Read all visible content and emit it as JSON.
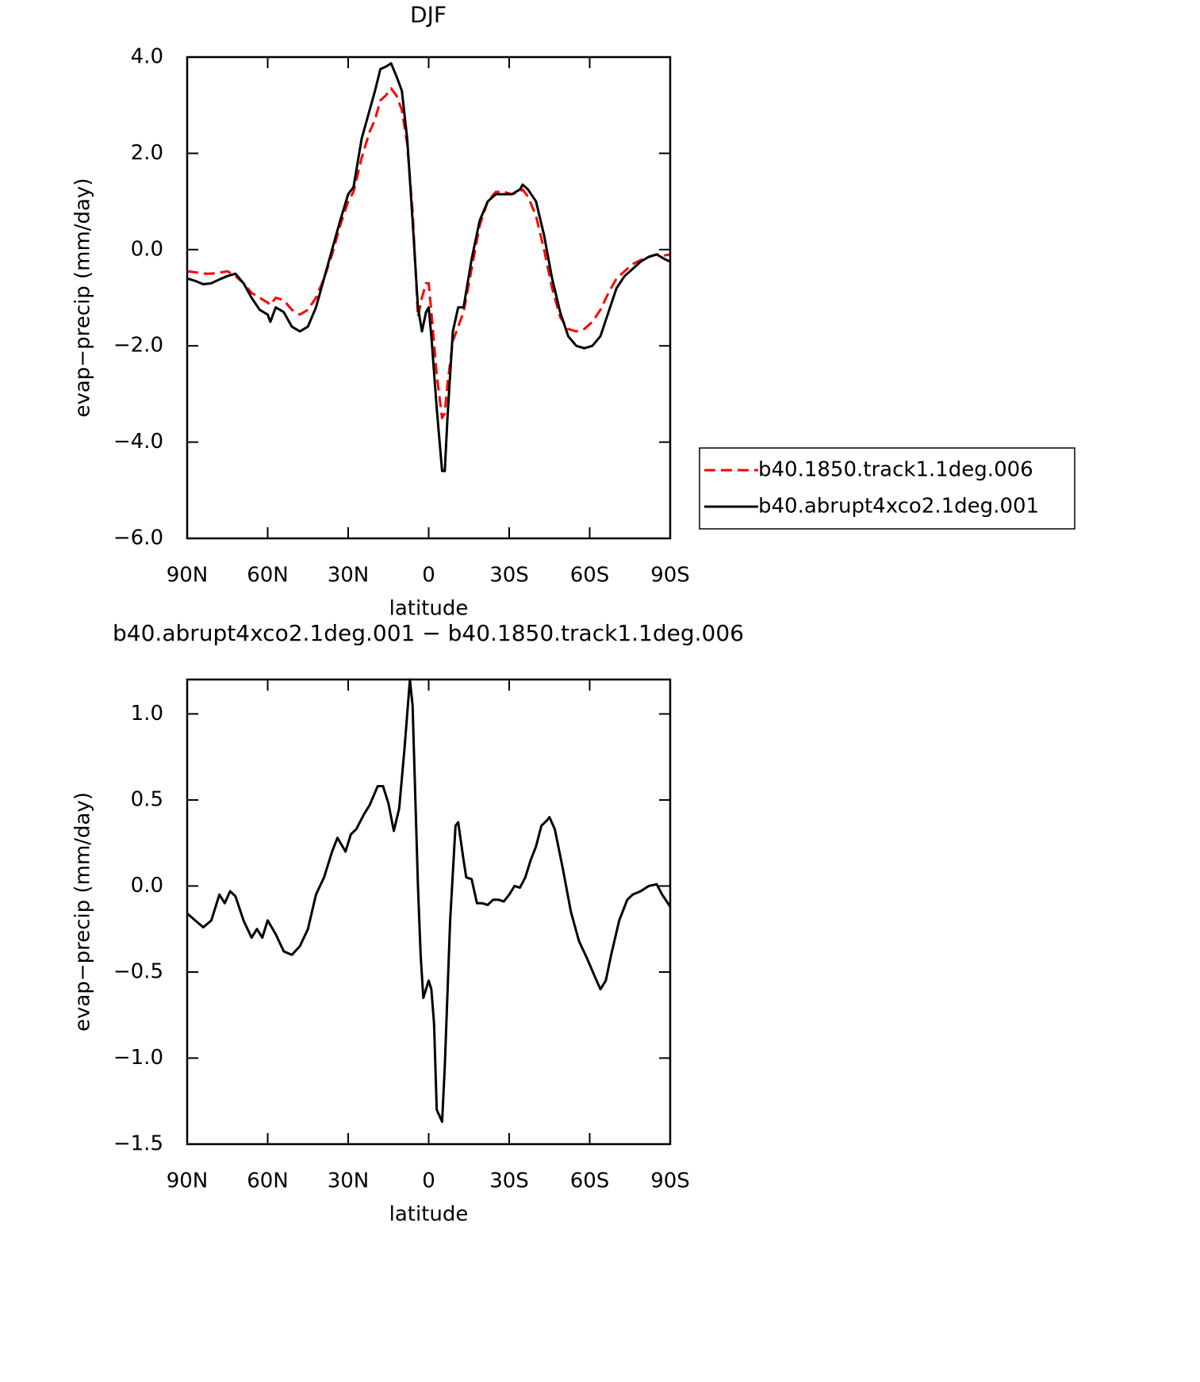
{
  "chart_data": [
    {
      "type": "line",
      "title": "DJF",
      "x_label": "latitude",
      "y_label": "evap−precip (mm/day)",
      "xlim": [
        90,
        -90
      ],
      "xticks": [
        {
          "value": 90,
          "label": "90N"
        },
        {
          "value": 60,
          "label": "60N"
        },
        {
          "value": 30,
          "label": "30N"
        },
        0,
        {
          "value": -30,
          "label": "30S"
        },
        {
          "value": -60,
          "label": "60S"
        },
        {
          "value": -90,
          "label": "90S"
        }
      ],
      "ylim": [
        -6,
        4
      ],
      "yticks": [
        {
          "value": -6,
          "label": "−6.0"
        },
        {
          "value": -4,
          "label": "−4.0"
        },
        {
          "value": -2,
          "label": "−2.0"
        },
        {
          "value": 0,
          "label": "0.0"
        },
        {
          "value": 2,
          "label": "2.0"
        },
        {
          "value": 4,
          "label": "4.0"
        }
      ],
      "legend": "right",
      "x": [
        90,
        87,
        84,
        81,
        78,
        75,
        72,
        69,
        66,
        63,
        60,
        59,
        57,
        54,
        51,
        48,
        45,
        42,
        39,
        36,
        33,
        30,
        28,
        25,
        22,
        20,
        18,
        16,
        14,
        12,
        10,
        8,
        6,
        4,
        2.5,
        1,
        0,
        -1,
        -3,
        -5,
        -6,
        -7,
        -9,
        -11,
        -13,
        -16,
        -19,
        -22,
        -25,
        -28,
        -31,
        -34,
        -35,
        -37,
        -40,
        -43,
        -46,
        -49,
        -52,
        -55,
        -58,
        -61,
        -64,
        -67,
        -70,
        -73,
        -76,
        -79,
        -82,
        -85,
        -88,
        -90
      ],
      "series": [
        {
          "name": "b40.1850.track1.1deg.006",
          "color": "#ff0000",
          "dash": true,
          "values": [
            -0.45,
            -0.47,
            -0.5,
            -0.5,
            -0.48,
            -0.45,
            -0.55,
            -0.7,
            -0.9,
            -1.0,
            -1.1,
            -1.15,
            -1.0,
            -1.05,
            -1.25,
            -1.35,
            -1.25,
            -1.0,
            -0.6,
            -0.1,
            0.5,
            1.0,
            1.2,
            1.9,
            2.45,
            2.7,
            3.1,
            3.2,
            3.35,
            3.2,
            2.9,
            2.2,
            0.8,
            -1.4,
            -1.0,
            -0.7,
            -0.7,
            -1.3,
            -2.6,
            -3.5,
            -3.4,
            -2.8,
            -1.9,
            -1.6,
            -1.3,
            -0.4,
            0.5,
            1.0,
            1.2,
            1.2,
            1.15,
            1.2,
            1.25,
            1.1,
            0.7,
            0.0,
            -0.8,
            -1.4,
            -1.65,
            -1.7,
            -1.65,
            -1.5,
            -1.25,
            -0.9,
            -0.6,
            -0.45,
            -0.3,
            -0.22,
            -0.15,
            -0.1,
            -0.12,
            -0.1
          ]
        },
        {
          "name": "b40.abrupt4xco2.1deg.001",
          "color": "#000000",
          "dash": false,
          "values": [
            -0.6,
            -0.65,
            -0.72,
            -0.7,
            -0.62,
            -0.55,
            -0.5,
            -0.7,
            -1.0,
            -1.25,
            -1.35,
            -1.5,
            -1.2,
            -1.3,
            -1.6,
            -1.7,
            -1.6,
            -1.2,
            -0.6,
            0.0,
            0.6,
            1.15,
            1.3,
            2.3,
            2.9,
            3.3,
            3.75,
            3.8,
            3.87,
            3.6,
            3.3,
            2.3,
            0.6,
            -1.2,
            -1.7,
            -1.3,
            -1.2,
            -1.8,
            -3.3,
            -4.6,
            -4.6,
            -3.5,
            -1.7,
            -1.2,
            -1.2,
            -0.2,
            0.6,
            1.0,
            1.15,
            1.15,
            1.15,
            1.25,
            1.35,
            1.25,
            1.0,
            0.3,
            -0.6,
            -1.3,
            -1.8,
            -2.0,
            -2.05,
            -2.0,
            -1.8,
            -1.3,
            -0.8,
            -0.55,
            -0.4,
            -0.25,
            -0.15,
            -0.1,
            -0.2,
            -0.25
          ]
        }
      ]
    },
    {
      "type": "line",
      "title": "b40.abrupt4xco2.1deg.001 − b40.1850.track1.1deg.006",
      "x_label": "latitude",
      "y_label": "evap−precip (mm/day)",
      "xlim": [
        90,
        -90
      ],
      "xticks": [
        {
          "value": 90,
          "label": "90N"
        },
        {
          "value": 60,
          "label": "60N"
        },
        {
          "value": 30,
          "label": "30N"
        },
        0,
        {
          "value": -30,
          "label": "30S"
        },
        {
          "value": -60,
          "label": "60S"
        },
        {
          "value": -90,
          "label": "90S"
        }
      ],
      "ylim": [
        -1.5,
        1.2
      ],
      "yticks": [
        {
          "value": -1.5,
          "label": "−1.5"
        },
        {
          "value": -1,
          "label": "−1.0"
        },
        {
          "value": -0.5,
          "label": "−0.5"
        },
        {
          "value": 0,
          "label": "0.0"
        },
        {
          "value": 0.5,
          "label": "0.5"
        },
        {
          "value": 1,
          "label": "1.0"
        }
      ],
      "x": [
        90,
        87,
        84,
        81,
        78,
        76,
        74,
        72,
        69,
        66,
        64,
        62,
        60,
        57,
        54,
        51,
        48,
        45,
        42,
        39,
        36,
        34,
        31,
        29,
        27,
        24,
        22,
        19,
        17,
        15,
        13,
        11,
        9,
        7,
        6,
        4,
        3,
        2,
        0,
        -1,
        -2,
        -3,
        -5,
        -6,
        -8,
        -10,
        -11,
        -13,
        -14,
        -16,
        -18,
        -20,
        -22,
        -24,
        -26,
        -28,
        -30,
        -32,
        -34,
        -36,
        -38,
        -40,
        -42,
        -44,
        -45,
        -47,
        -50,
        -53,
        -56,
        -59,
        -62,
        -64,
        -66,
        -68,
        -71,
        -74,
        -76,
        -79,
        -82,
        -85,
        -87,
        -90
      ],
      "series": [
        {
          "color": "#000000",
          "dash": false,
          "values": [
            -0.16,
            -0.2,
            -0.24,
            -0.2,
            -0.05,
            -0.1,
            -0.03,
            -0.06,
            -0.2,
            -0.3,
            -0.25,
            -0.3,
            -0.2,
            -0.28,
            -0.38,
            -0.4,
            -0.35,
            -0.25,
            -0.05,
            0.05,
            0.2,
            0.28,
            0.2,
            0.3,
            0.33,
            0.42,
            0.47,
            0.58,
            0.58,
            0.48,
            0.32,
            0.45,
            0.8,
            1.2,
            1.05,
            0.0,
            -0.4,
            -0.65,
            -0.55,
            -0.6,
            -0.8,
            -1.3,
            -1.37,
            -1.05,
            -0.2,
            0.35,
            0.37,
            0.15,
            0.05,
            0.04,
            -0.1,
            -0.1,
            -0.11,
            -0.08,
            -0.08,
            -0.09,
            -0.05,
            0.0,
            -0.01,
            0.05,
            0.15,
            0.23,
            0.35,
            0.38,
            0.4,
            0.33,
            0.1,
            -0.15,
            -0.32,
            -0.42,
            -0.53,
            -0.6,
            -0.55,
            -0.4,
            -0.2,
            -0.08,
            -0.05,
            -0.03,
            0.0,
            0.01,
            -0.05,
            -0.12
          ]
        }
      ]
    }
  ]
}
